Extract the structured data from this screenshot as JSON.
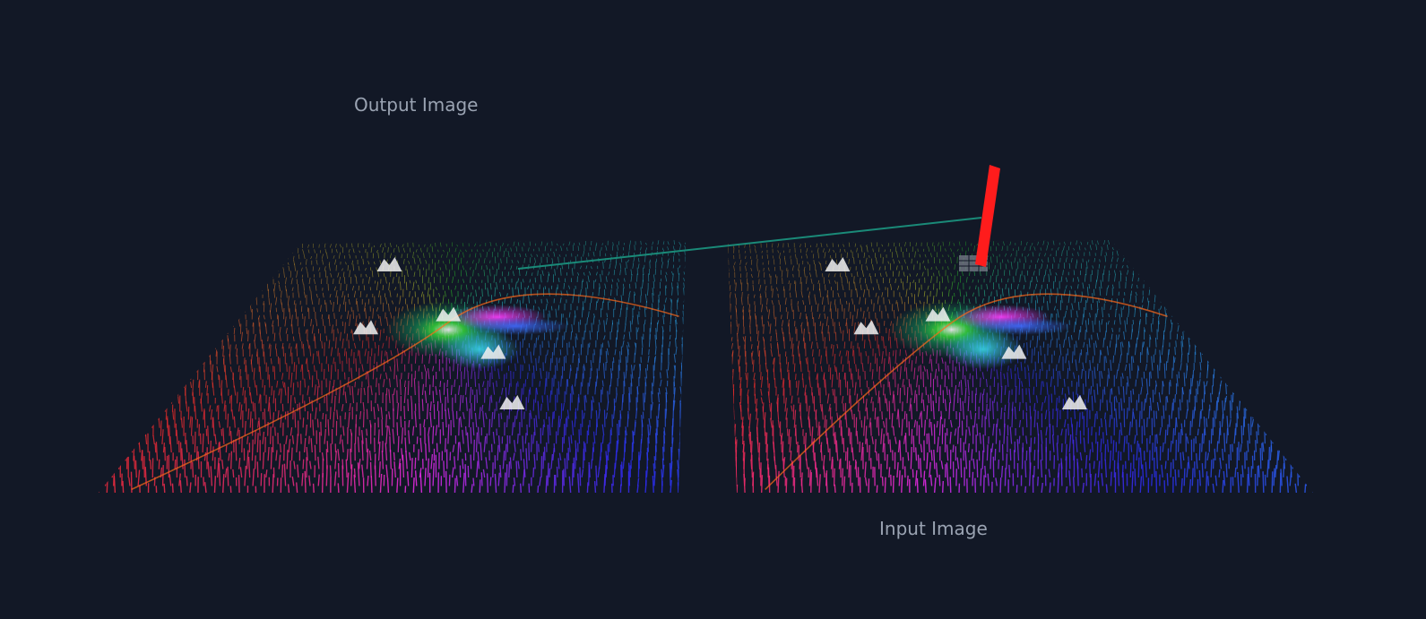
{
  "labels": {
    "output": "Output Image",
    "input": "Input Image"
  },
  "colors": {
    "background": "#121826",
    "label": "#9aa3b2",
    "marker": "#ff1c1c",
    "connector": "#1a8a78"
  }
}
